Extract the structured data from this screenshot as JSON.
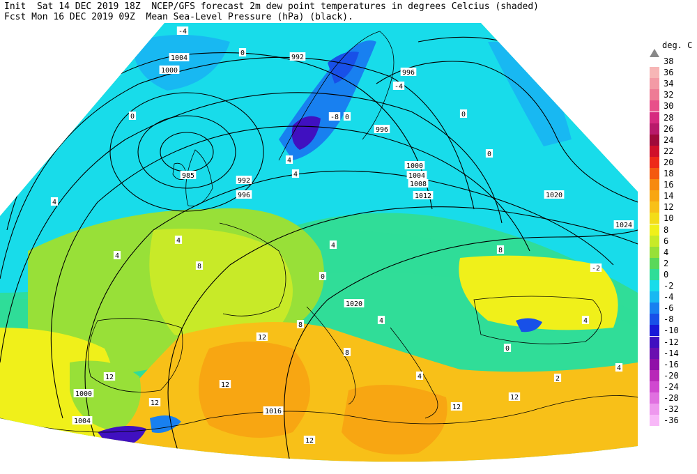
{
  "header": {
    "line1": "Init  Sat 14 DEC 2019 18Z  NCEP/GFS forecast 2m dew point temperatures in degrees Celcius (shaded)",
    "line2": "Fcst Mon 16 DEC 2019 09Z  Mean Sea-Level Pressure (hPa) (black)."
  },
  "legend": {
    "unit": "deg. C",
    "entries": [
      {
        "label": "38",
        "color": "#ffffff"
      },
      {
        "label": "36",
        "color": "#f7b6b6"
      },
      {
        "label": "34",
        "color": "#f39aa5"
      },
      {
        "label": "32",
        "color": "#ee7b95"
      },
      {
        "label": "30",
        "color": "#e8508a"
      },
      {
        "label": "28",
        "color": "#d62a7f"
      },
      {
        "label": "26",
        "color": "#b81a6a"
      },
      {
        "label": "24",
        "color": "#a00a3a"
      },
      {
        "label": "22",
        "color": "#d0102a"
      },
      {
        "label": "20",
        "color": "#ee2a18"
      },
      {
        "label": "18",
        "color": "#f45a10"
      },
      {
        "label": "16",
        "color": "#f78a10"
      },
      {
        "label": "14",
        "color": "#f8a612"
      },
      {
        "label": "12",
        "color": "#f8c018"
      },
      {
        "label": "10",
        "color": "#f3dc18"
      },
      {
        "label": "8",
        "color": "#f0f01a"
      },
      {
        "label": "6",
        "color": "#c8ea28"
      },
      {
        "label": "4",
        "color": "#98e038"
      },
      {
        "label": "2",
        "color": "#5ad85a"
      },
      {
        "label": "0",
        "color": "#30dd98"
      },
      {
        "label": "-2",
        "color": "#18dcea"
      },
      {
        "label": "-4",
        "color": "#18b8f2"
      },
      {
        "label": "-6",
        "color": "#1880f0"
      },
      {
        "label": "-8",
        "color": "#1850e8"
      },
      {
        "label": "-10",
        "color": "#1818d8"
      },
      {
        "label": "-12",
        "color": "#4010c0"
      },
      {
        "label": "-14",
        "color": "#6a10b0"
      },
      {
        "label": "-16",
        "color": "#9010a8"
      },
      {
        "label": "-20",
        "color": "#b828b8"
      },
      {
        "label": "-24",
        "color": "#d048d0"
      },
      {
        "label": "-28",
        "color": "#e070e0"
      },
      {
        "label": "-32",
        "color": "#ee98ee"
      },
      {
        "label": "-36",
        "color": "#f8b8f8"
      }
    ]
  },
  "isobar_labels": [
    "1004",
    "1000",
    "992",
    "996",
    "996",
    "985",
    "992",
    "996",
    "1000",
    "1004",
    "1008",
    "1012",
    "1020",
    "1024",
    "1020",
    "1000",
    "1004",
    "1016"
  ],
  "temp_labels": [
    "-4",
    "0",
    "0",
    "-4",
    "0",
    "-8",
    "0",
    "4",
    "4",
    "0",
    "4",
    "4",
    "4",
    "8",
    "0",
    "4",
    "4",
    "8",
    "12",
    "12",
    "12",
    "8",
    "4",
    "12",
    "12",
    "12",
    "12",
    "4",
    "8",
    "-2",
    "0",
    "2",
    "4"
  ]
}
